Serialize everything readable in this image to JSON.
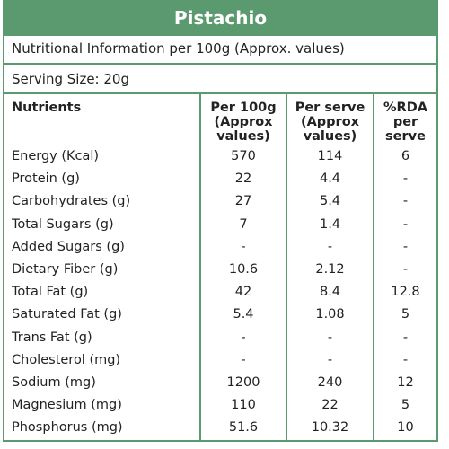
{
  "header": {
    "title": "Pistachio"
  },
  "info": "Nutritional Information per 100g (Approx. values)",
  "serving": "Serving Size:  20g",
  "table": {
    "columns": [
      "Nutrients",
      "Per 100g (Approx values)",
      "Per serve (Approx values)",
      "%RDA per serve"
    ],
    "rows": [
      [
        "Energy (Kcal)",
        "570",
        "114",
        "6"
      ],
      [
        "Protein (g)",
        "22",
        "4.4",
        "-"
      ],
      [
        "Carbohydrates (g)",
        "27",
        "5.4",
        "-"
      ],
      [
        "Total Sugars (g)",
        "7",
        "1.4",
        "-"
      ],
      [
        "Added Sugars (g)",
        "-",
        "-",
        "-"
      ],
      [
        "Dietary Fiber (g)",
        "10.6",
        "2.12",
        "-"
      ],
      [
        "Total Fat (g)",
        "42",
        "8.4",
        "12.8"
      ],
      [
        "Saturated Fat (g)",
        "5.4",
        "1.08",
        "5"
      ],
      [
        "Trans Fat (g)",
        "-",
        "-",
        "-"
      ],
      [
        "Cholesterol (mg)",
        "-",
        "-",
        "-"
      ],
      [
        "Sodium (mg)",
        "1200",
        "240",
        "12"
      ],
      [
        "Magnesium (mg)",
        "110",
        "22",
        "5"
      ],
      [
        "Phosphorus (mg)",
        "51.6",
        "10.32",
        "10"
      ]
    ]
  }
}
